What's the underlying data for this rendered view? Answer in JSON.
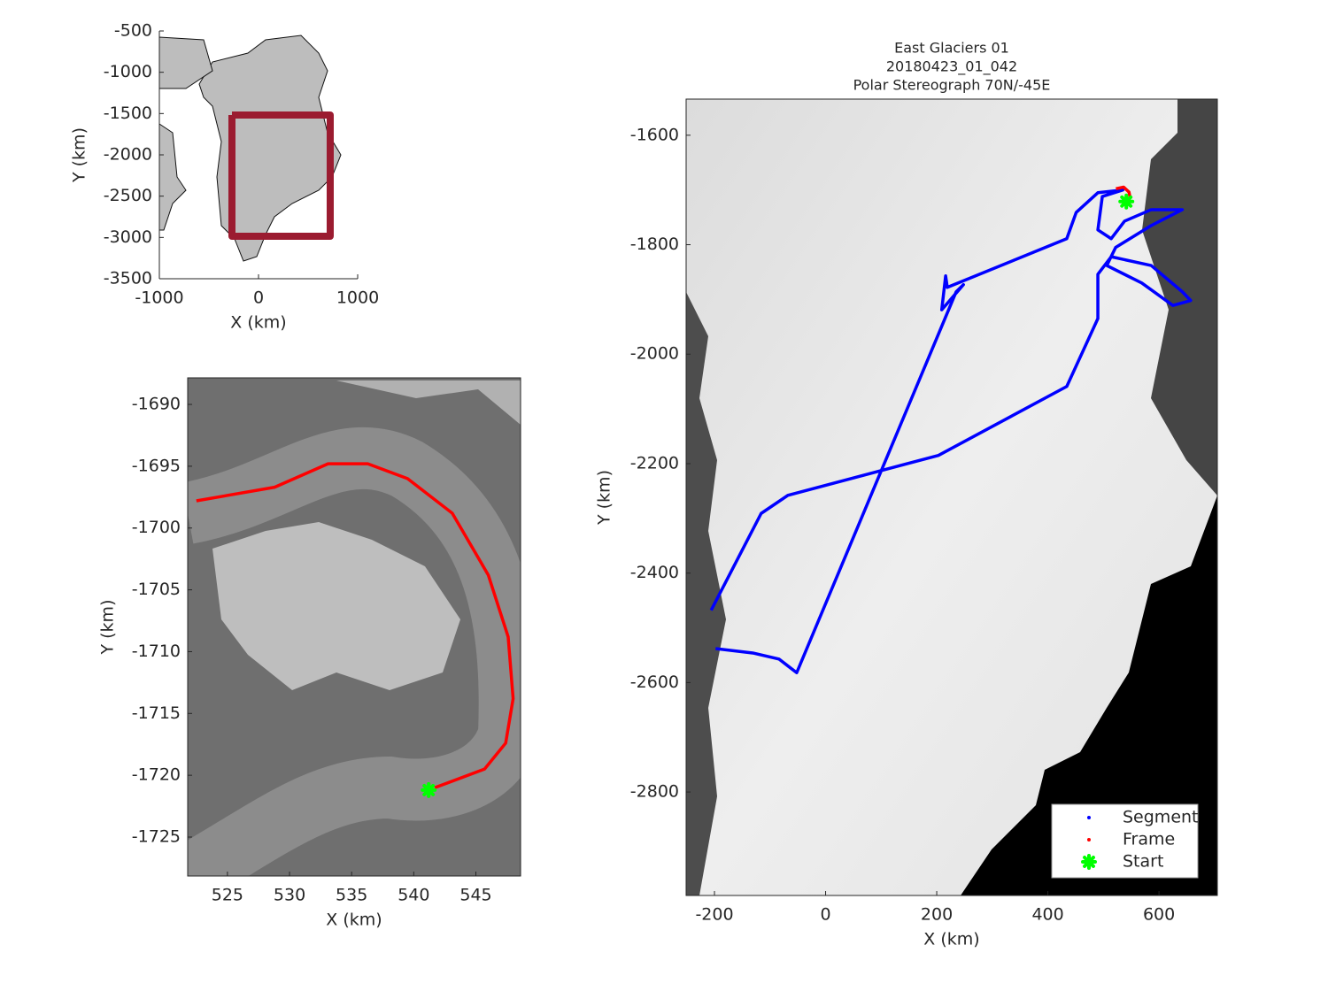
{
  "chart_data": [
    {
      "type": "line",
      "xlabel": "X (km)",
      "ylabel": "Y (km)",
      "xlim": [
        -1000,
        1000
      ],
      "ylim": [
        -3500,
        -500
      ],
      "xticks": [
        -1000,
        0,
        1000
      ],
      "yticks": [
        -3500,
        -3000,
        -2500,
        -2000,
        -1500,
        -1000,
        -500
      ],
      "series": [
        {
          "color": "#9b1b30",
          "mode": "line",
          "x": [
            -268,
            723,
            723,
            -268,
            -268
          ],
          "values": [
            -1518,
            -1518,
            -2986,
            -2986,
            -1518
          ]
        }
      ]
    },
    {
      "type": "line",
      "xlabel": "X (km)",
      "ylabel": "Y (km)",
      "xlim": [
        521.8,
        548.6
      ],
      "ylim": [
        -1728.15,
        -1687.85
      ],
      "xticks": [
        525,
        530,
        535,
        540,
        545
      ],
      "yticks": [
        -1725,
        -1720,
        -1715,
        -1710,
        -1705,
        -1700,
        -1695,
        -1690
      ],
      "series": [
        {
          "color": "#ff0000",
          "mode": "line",
          "x": [
            522.5,
            528.8,
            533.1,
            536.3,
            539.5,
            543.1,
            546.0,
            547.6,
            548.0,
            547.4,
            545.7,
            541.7
          ],
          "values": [
            -1697.8,
            -1696.7,
            -1694.8,
            -1694.8,
            -1696.0,
            -1698.8,
            -1703.8,
            -1708.8,
            -1713.8,
            -1717.4,
            -1719.5,
            -1721.0
          ]
        },
        {
          "color": "#00ff00",
          "mode": "marker",
          "x": [
            541.2
          ],
          "values": [
            -1721.2
          ]
        }
      ]
    },
    {
      "type": "line",
      "title": [
        "East Glaciers 01",
        "20180423_01_042",
        "Polar Stereograph 70N/-45E"
      ],
      "xlabel": "X (km)",
      "ylabel": "Y (km)",
      "xlim": [
        -251,
        705
      ],
      "ylim": [
        -2989,
        -1534
      ],
      "xticks": [
        -200,
        0,
        200,
        400,
        600
      ],
      "yticks": [
        -2800,
        -2600,
        -2400,
        -2200,
        -2000,
        -1800,
        -1600
      ],
      "legend": "lower right",
      "series": [
        {
          "name": "Segment",
          "color": "#0000ff",
          "mode": "line",
          "x": [
            -206,
            -116,
            -68,
            203,
            434,
            490,
            490,
            514,
            586,
            642,
            657,
            625,
            569,
            506,
            522,
            586,
            642,
            586,
            538,
            514,
            490,
            498,
            535,
            490,
            451,
            434,
            219,
            216,
            209,
            248,
            235,
            -52,
            -84,
            -131,
            -198
          ],
          "values": [
            -2468,
            -2291,
            -2258,
            -2185,
            -2059,
            -1935,
            -1854,
            -1822,
            -1838,
            -1886,
            -1902,
            -1911,
            -1870,
            -1838,
            -1805,
            -1765,
            -1736,
            -1736,
            -1757,
            -1789,
            -1773,
            -1712,
            -1700,
            -1705,
            -1741,
            -1789,
            -1878,
            -1857,
            -1919,
            -1873,
            -1886,
            -2582,
            -2557,
            -2546,
            -2538
          ]
        },
        {
          "name": "Frame",
          "color": "#ff0000",
          "mode": "line",
          "x": [
            522.5,
            536.3,
            546.0,
            548.0,
            541.7
          ],
          "values": [
            -1697.8,
            -1694.8,
            -1703.8,
            -1713.8,
            -1721.0
          ]
        },
        {
          "name": "Start",
          "color": "#00ff00",
          "mode": "marker",
          "x": [
            541.2
          ],
          "values": [
            -1721.2
          ]
        }
      ]
    }
  ]
}
